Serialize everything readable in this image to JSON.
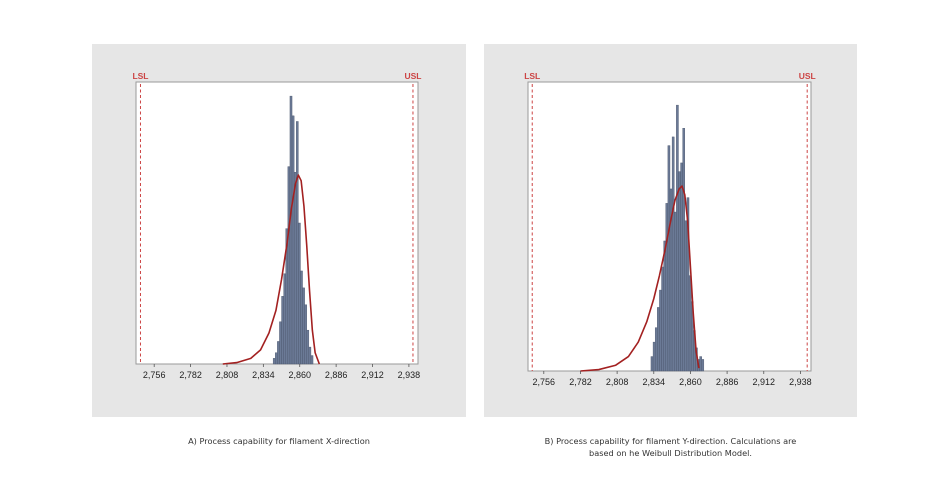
{
  "colors": {
    "panel_bg": "#e6e6e6",
    "plot_bg": "#ffffff",
    "bar": "#6b7a96",
    "bar_edge": "#4a556b",
    "curve": "#a32121",
    "spec": "#cc4444"
  },
  "captions": {
    "a": "A) Process capability for filament X-direction",
    "b_line1": "B) Process capability for filament Y-direction. Calculations are",
    "b_line2": "based on he Weibull Distribution Model."
  },
  "chart_data": [
    {
      "type": "bar",
      "xlim": [
        2.743,
        2.9445
      ],
      "ticks": [
        2.756,
        2.782,
        2.808,
        2.834,
        2.86,
        2.886,
        2.912,
        2.938
      ],
      "tick_labels": [
        "2,756",
        "2,782",
        "2,808",
        "2,834",
        "2,860",
        "2,886",
        "2,912",
        "2,938"
      ],
      "lsl": {
        "label": "LSL",
        "value": 2.7462
      },
      "usl": {
        "label": "USL",
        "value": 2.9409
      },
      "ymax": 1.0,
      "bins": [
        {
          "x0": 2.841,
          "x1": 2.8425,
          "h": 0.02
        },
        {
          "x0": 2.8425,
          "x1": 2.844,
          "h": 0.04
        },
        {
          "x0": 2.844,
          "x1": 2.8455,
          "h": 0.08
        },
        {
          "x0": 2.8455,
          "x1": 2.847,
          "h": 0.15
        },
        {
          "x0": 2.847,
          "x1": 2.8485,
          "h": 0.24
        },
        {
          "x0": 2.8485,
          "x1": 2.85,
          "h": 0.32
        },
        {
          "x0": 2.85,
          "x1": 2.8515,
          "h": 0.48
        },
        {
          "x0": 2.8515,
          "x1": 2.853,
          "h": 0.7
        },
        {
          "x0": 2.853,
          "x1": 2.8545,
          "h": 0.95
        },
        {
          "x0": 2.8545,
          "x1": 2.856,
          "h": 0.88
        },
        {
          "x0": 2.856,
          "x1": 2.8575,
          "h": 0.68
        },
        {
          "x0": 2.8575,
          "x1": 2.859,
          "h": 0.86
        },
        {
          "x0": 2.859,
          "x1": 2.8605,
          "h": 0.5
        },
        {
          "x0": 2.8605,
          "x1": 2.862,
          "h": 0.33
        },
        {
          "x0": 2.862,
          "x1": 2.8635,
          "h": 0.27
        },
        {
          "x0": 2.8635,
          "x1": 2.865,
          "h": 0.21
        },
        {
          "x0": 2.865,
          "x1": 2.8665,
          "h": 0.12
        },
        {
          "x0": 2.8665,
          "x1": 2.868,
          "h": 0.06
        },
        {
          "x0": 2.868,
          "x1": 2.8695,
          "h": 0.03
        }
      ],
      "curve": {
        "x": [
          2.805,
          2.815,
          2.825,
          2.832,
          2.838,
          2.843,
          2.847,
          2.851,
          2.854,
          2.857,
          2.859,
          2.861,
          2.863,
          2.865,
          2.867,
          2.869,
          2.871,
          2.874
        ],
        "y": [
          0.0,
          0.005,
          0.02,
          0.05,
          0.11,
          0.19,
          0.3,
          0.43,
          0.55,
          0.64,
          0.67,
          0.65,
          0.56,
          0.42,
          0.26,
          0.12,
          0.04,
          0.0
        ]
      }
    },
    {
      "type": "bar",
      "xlim": [
        2.7448,
        2.9455
      ],
      "ticks": [
        2.756,
        2.782,
        2.808,
        2.834,
        2.86,
        2.886,
        2.912,
        2.938
      ],
      "tick_labels": [
        "2,756",
        "2,782",
        "2,808",
        "2,834",
        "2,860",
        "2,886",
        "2,912",
        "2,938"
      ],
      "lsl": {
        "label": "LSL",
        "value": 2.7478
      },
      "usl": {
        "label": "USL",
        "value": 2.9428
      },
      "ymax": 1.0,
      "bins": [
        {
          "x0": 2.832,
          "x1": 2.8335,
          "h": 0.05
        },
        {
          "x0": 2.8335,
          "x1": 2.835,
          "h": 0.1
        },
        {
          "x0": 2.835,
          "x1": 2.8365,
          "h": 0.15
        },
        {
          "x0": 2.8365,
          "x1": 2.838,
          "h": 0.22
        },
        {
          "x0": 2.838,
          "x1": 2.8395,
          "h": 0.28
        },
        {
          "x0": 2.8395,
          "x1": 2.841,
          "h": 0.36
        },
        {
          "x0": 2.841,
          "x1": 2.8425,
          "h": 0.45
        },
        {
          "x0": 2.8425,
          "x1": 2.844,
          "h": 0.58
        },
        {
          "x0": 2.844,
          "x1": 2.8455,
          "h": 0.78
        },
        {
          "x0": 2.8455,
          "x1": 2.847,
          "h": 0.63
        },
        {
          "x0": 2.847,
          "x1": 2.8485,
          "h": 0.81
        },
        {
          "x0": 2.8485,
          "x1": 2.85,
          "h": 0.55
        },
        {
          "x0": 2.85,
          "x1": 2.8515,
          "h": 0.92
        },
        {
          "x0": 2.8515,
          "x1": 2.853,
          "h": 0.69
        },
        {
          "x0": 2.853,
          "x1": 2.8545,
          "h": 0.72
        },
        {
          "x0": 2.8545,
          "x1": 2.856,
          "h": 0.84
        },
        {
          "x0": 2.856,
          "x1": 2.8575,
          "h": 0.52
        },
        {
          "x0": 2.8575,
          "x1": 2.859,
          "h": 0.6
        },
        {
          "x0": 2.859,
          "x1": 2.8605,
          "h": 0.33
        },
        {
          "x0": 2.8605,
          "x1": 2.862,
          "h": 0.24
        },
        {
          "x0": 2.862,
          "x1": 2.8635,
          "h": 0.14
        },
        {
          "x0": 2.8635,
          "x1": 2.865,
          "h": 0.08
        },
        {
          "x0": 2.865,
          "x1": 2.8665,
          "h": 0.04
        },
        {
          "x0": 2.8665,
          "x1": 2.868,
          "h": 0.05
        },
        {
          "x0": 2.868,
          "x1": 2.8695,
          "h": 0.04
        }
      ],
      "curve": {
        "x": [
          2.782,
          2.795,
          2.807,
          2.816,
          2.823,
          2.829,
          2.834,
          2.838,
          2.842,
          2.846,
          2.849,
          2.852,
          2.854,
          2.856,
          2.858,
          2.86,
          2.862,
          2.864,
          2.866
        ],
        "y": [
          0.0,
          0.005,
          0.02,
          0.05,
          0.1,
          0.17,
          0.25,
          0.33,
          0.42,
          0.52,
          0.59,
          0.63,
          0.64,
          0.61,
          0.52,
          0.36,
          0.2,
          0.07,
          0.01
        ]
      }
    }
  ]
}
